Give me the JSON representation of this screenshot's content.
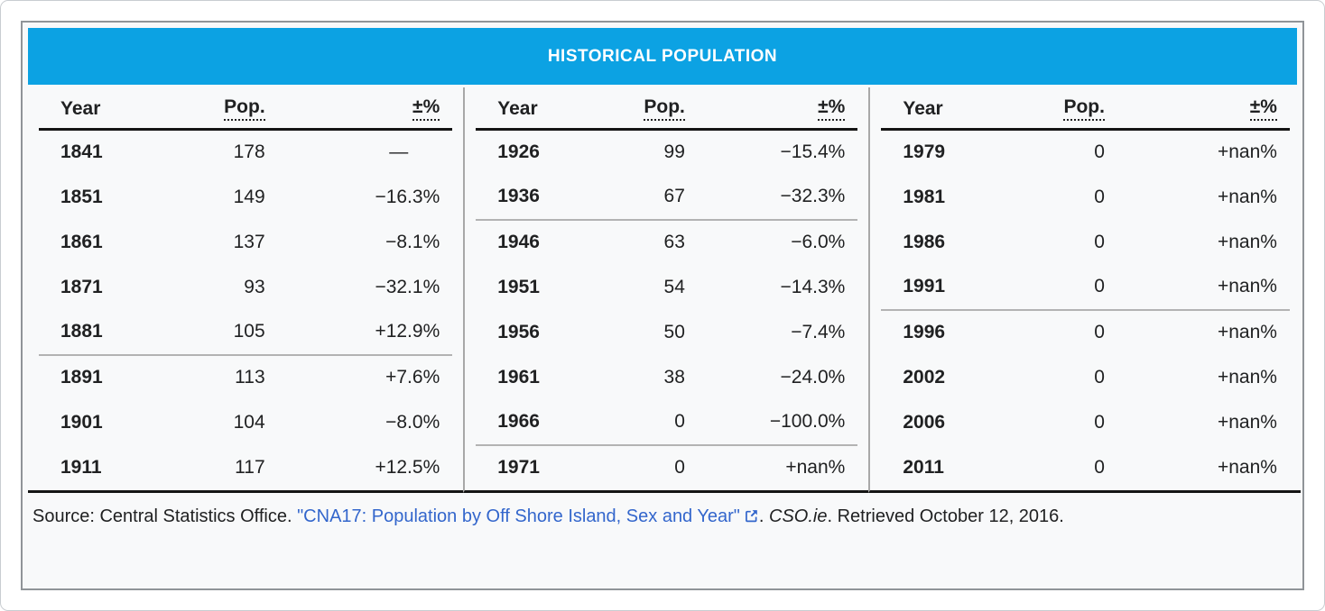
{
  "table": {
    "title": "HISTORICAL POPULATION",
    "columns": {
      "year": "Year",
      "pop": "Pop.",
      "pct": "±%"
    }
  },
  "chart_data": {
    "type": "table",
    "title": "HISTORICAL POPULATION",
    "columns": [
      "Year",
      "Pop.",
      "±%"
    ],
    "groups": [
      {
        "rows": [
          [
            "1841",
            "178",
            "—"
          ],
          [
            "1851",
            "149",
            "−16.3%"
          ],
          [
            "1861",
            "137",
            "−8.1%"
          ],
          [
            "1871",
            "93",
            "−32.1%"
          ],
          [
            "1881",
            "105",
            "+12.9%"
          ],
          [
            "1891",
            "113",
            "+7.6%"
          ],
          [
            "1901",
            "104",
            "−8.0%"
          ],
          [
            "1911",
            "117",
            "+12.5%"
          ]
        ]
      },
      {
        "rows": [
          [
            "1926",
            "99",
            "−15.4%"
          ],
          [
            "1936",
            "67",
            "−32.3%"
          ],
          [
            "1946",
            "63",
            "−6.0%"
          ],
          [
            "1951",
            "54",
            "−14.3%"
          ],
          [
            "1956",
            "50",
            "−7.4%"
          ],
          [
            "1961",
            "38",
            "−24.0%"
          ],
          [
            "1966",
            "0",
            "−100.0%"
          ],
          [
            "1971",
            "0",
            "+nan%"
          ]
        ]
      },
      {
        "rows": [
          [
            "1979",
            "0",
            "+nan%"
          ],
          [
            "1981",
            "0",
            "+nan%"
          ],
          [
            "1986",
            "0",
            "+nan%"
          ],
          [
            "1991",
            "0",
            "+nan%"
          ],
          [
            "1996",
            "0",
            "+nan%"
          ],
          [
            "2002",
            "0",
            "+nan%"
          ],
          [
            "2006",
            "0",
            "+nan%"
          ],
          [
            "2011",
            "0",
            "+nan%"
          ]
        ]
      }
    ],
    "source": "Source: Central Statistics Office. \"CNA17: Population by Off Shore Island, Sex and Year\". CSO.ie. Retrieved October 12, 2016."
  },
  "footer": {
    "prefix": "Source: Central Statistics Office. ",
    "link_text": "\"CNA17: Population by Off Shore Island, Sex and Year\"",
    "link_icon": "external-link",
    "sep": ". ",
    "site": "CSO.ie",
    "suffix": ". Retrieved October 12, 2016."
  },
  "colors": {
    "header_bg": "#0ca2e3",
    "header_text": "#ffffff",
    "link": "#3366cc",
    "table_bg": "#f8f9fa",
    "outer_border": "#909498",
    "divider": "#a8a8a8",
    "rule_line": "#b3b3b3",
    "strong_line": "#141414",
    "text": "#202122"
  }
}
